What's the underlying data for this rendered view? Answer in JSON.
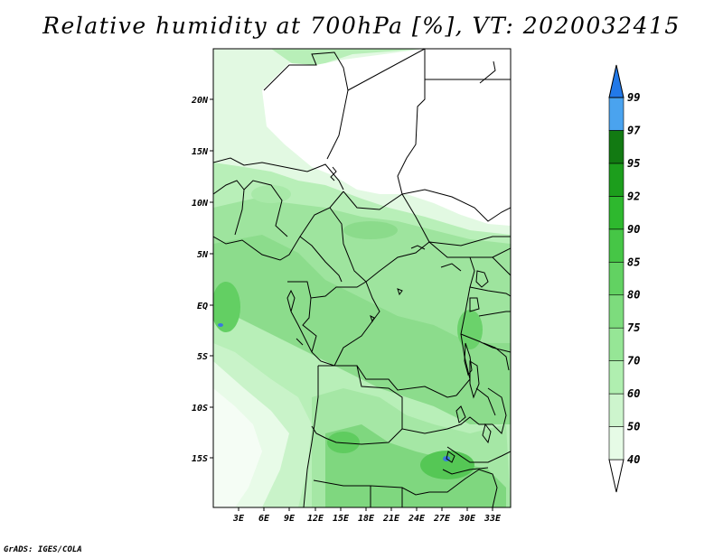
{
  "title": "Relative humidity at 700hPa [%], VT: 2020032415",
  "credit": "GrADS: IGES/COLA",
  "map": {
    "lat_labels": [
      "20N",
      "15N",
      "10N",
      "5N",
      "EQ",
      "5S",
      "10S",
      "15S"
    ],
    "lon_labels": [
      "3E",
      "6E",
      "9E",
      "12E",
      "15E",
      "18E",
      "21E",
      "24E",
      "27E",
      "30E",
      "33E"
    ]
  },
  "colorbar": {
    "labels": [
      "40",
      "50",
      "60",
      "70",
      "75",
      "80",
      "85",
      "90",
      "92",
      "95",
      "97",
      "99"
    ],
    "colors": [
      "#ffffff",
      "#e6fbe6",
      "#cdf5cd",
      "#b0efb0",
      "#96e696",
      "#7ddc7d",
      "#62d262",
      "#46c646",
      "#2eb82e",
      "#1c9e1c",
      "#127a12",
      "#4aa3ef",
      "#2279e8",
      "#1f5fd6"
    ]
  },
  "colors": {
    "land_humid": "#8fe08f",
    "dry": "#ffffff",
    "moist_patch": "#3a78e0"
  }
}
